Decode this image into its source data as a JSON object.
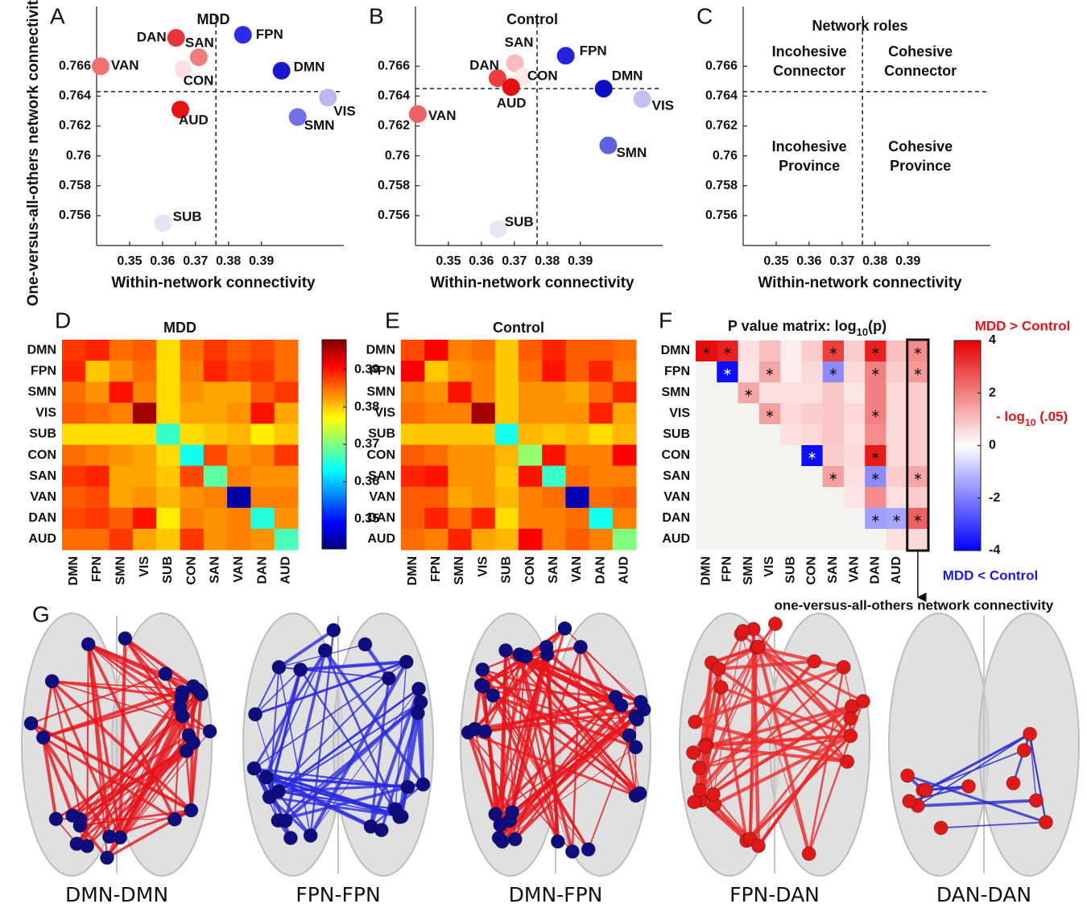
{
  "chart_data": [
    {
      "type": "scatter",
      "panel": "A",
      "title": "MDD",
      "xlabel": "Within-network connectivity",
      "ylabel": "One-versus-all-others network connectivity",
      "xlim": [
        0.34,
        0.415
      ],
      "ylim": [
        0.754,
        0.77
      ],
      "xticks": [
        0.35,
        0.36,
        0.37,
        0.38,
        0.39
      ],
      "yticks": [
        0.756,
        0.758,
        0.76,
        0.762,
        0.764,
        0.766
      ],
      "vline": 0.3762,
      "hline": 0.7643,
      "labels": [
        "DAN",
        "SAN",
        "FPN",
        "VAN",
        "CON",
        "DMN",
        "VIS",
        "AUD",
        "SMN",
        "SUB"
      ],
      "x": [
        0.3641,
        0.371,
        0.3844,
        0.3412,
        0.3663,
        0.3961,
        0.4102,
        0.3654,
        0.401,
        0.3602
      ],
      "y": [
        0.7679,
        0.7666,
        0.7681,
        0.766,
        0.7658,
        0.7657,
        0.7639,
        0.7631,
        0.7626,
        0.7555
      ],
      "colors": [
        "#e8323c",
        "#f07c7c",
        "#2b2be8",
        "#f27070",
        "#fbe0e0",
        "#1818d0",
        "#b9b9f0",
        "#e81010",
        "#7070e8",
        "#e4e4f6"
      ]
    },
    {
      "type": "scatter",
      "panel": "B",
      "title": "Control",
      "xlabel": "Within-network connectivity",
      "xlim": [
        0.34,
        0.415
      ],
      "ylim": [
        0.754,
        0.77
      ],
      "xticks": [
        0.35,
        0.36,
        0.37,
        0.38,
        0.39
      ],
      "yticks": [
        0.756,
        0.758,
        0.76,
        0.762,
        0.764,
        0.766
      ],
      "vline": 0.3769,
      "hline": 0.7645,
      "labels": [
        "SAN",
        "FPN",
        "DAN",
        "CON",
        "AUD",
        "DMN",
        "VIS",
        "VAN",
        "SMN",
        "SUB"
      ],
      "x": [
        0.3702,
        0.3856,
        0.3649,
        0.3727,
        0.369,
        0.3971,
        0.4088,
        0.3407,
        0.3985,
        0.3651
      ],
      "y": [
        0.7662,
        0.7667,
        0.7652,
        0.7653,
        0.7646,
        0.7645,
        0.7638,
        0.7628,
        0.7607,
        0.7551
      ],
      "colors": [
        "#f6bcbc",
        "#2424e0",
        "#ef3c3c",
        "#fde8e8",
        "#e41010",
        "#0c0cc8",
        "#c2c2f0",
        "#f06060",
        "#6060e0",
        "#e6e6f4"
      ]
    },
    {
      "type": "roles",
      "panel": "C",
      "title": "Network roles",
      "xlabel": "Within-network connectivity",
      "xlim": [
        0.34,
        0.415
      ],
      "ylim": [
        0.754,
        0.77
      ],
      "xticks": [
        0.35,
        0.36,
        0.37,
        0.38,
        0.39
      ],
      "yticks": [
        0.756,
        0.758,
        0.76,
        0.762,
        0.764,
        0.766
      ],
      "vline": 0.3762,
      "hline": 0.7643,
      "quadrants": [
        [
          "Incohesive",
          "Connector"
        ],
        [
          "Cohesive",
          "Connector"
        ],
        [
          "Incohesive",
          "Province"
        ],
        [
          "Cohesive",
          "Province"
        ]
      ]
    },
    {
      "type": "heatmap",
      "panel": "D",
      "title": "MDD",
      "colormap": "jet",
      "clim": [
        0.342,
        0.398
      ],
      "colorbar_ticks": [
        0.35,
        0.36,
        0.37,
        0.38,
        0.39
      ],
      "row_categories": [
        "DMN",
        "FPN",
        "SMN",
        "VIS",
        "SUB",
        "CON",
        "SAN",
        "VAN",
        "DAN",
        "AUD"
      ],
      "categories": [
        "DMN",
        "FPN",
        "SMN",
        "VIS",
        "SUB",
        "CON",
        "SAN",
        "VAN",
        "DAN",
        "AUD"
      ],
      "values": [
        [
          0.388,
          0.389,
          0.385,
          0.386,
          0.379,
          0.385,
          0.388,
          0.386,
          0.387,
          0.385
        ],
        [
          0.389,
          0.38,
          0.383,
          0.385,
          0.379,
          0.384,
          0.389,
          0.387,
          0.388,
          0.385
        ],
        [
          0.385,
          0.383,
          0.39,
          0.384,
          0.379,
          0.383,
          0.382,
          0.382,
          0.386,
          0.388
        ],
        [
          0.386,
          0.385,
          0.384,
          0.396,
          0.379,
          0.382,
          0.382,
          0.383,
          0.39,
          0.382
        ],
        [
          0.379,
          0.379,
          0.379,
          0.379,
          0.366,
          0.379,
          0.38,
          0.381,
          0.378,
          0.38
        ],
        [
          0.385,
          0.384,
          0.383,
          0.382,
          0.379,
          0.364,
          0.387,
          0.383,
          0.384,
          0.388
        ],
        [
          0.388,
          0.389,
          0.382,
          0.382,
          0.38,
          0.387,
          0.368,
          0.384,
          0.383,
          0.383
        ],
        [
          0.386,
          0.387,
          0.382,
          0.383,
          0.381,
          0.383,
          0.384,
          0.344,
          0.384,
          0.384
        ],
        [
          0.387,
          0.388,
          0.386,
          0.39,
          0.378,
          0.384,
          0.383,
          0.384,
          0.365,
          0.383
        ],
        [
          0.385,
          0.385,
          0.388,
          0.382,
          0.38,
          0.388,
          0.383,
          0.384,
          0.383,
          0.367
        ]
      ]
    },
    {
      "type": "heatmap",
      "panel": "E",
      "title": "Control",
      "colormap": "jet",
      "clim": [
        0.342,
        0.398
      ],
      "row_categories": [
        "DMN",
        "FPN",
        "SMN",
        "VIS",
        "SUB",
        "CON",
        "SAN",
        "VAN",
        "DAN",
        "AUD"
      ],
      "categories": [
        "DMN",
        "FPN",
        "SMN",
        "VIS",
        "SUB",
        "CON",
        "SAN",
        "VAN",
        "DAN",
        "AUD"
      ],
      "values": [
        [
          0.387,
          0.391,
          0.384,
          0.385,
          0.38,
          0.386,
          0.389,
          0.386,
          0.386,
          0.385
        ],
        [
          0.391,
          0.38,
          0.383,
          0.384,
          0.38,
          0.385,
          0.39,
          0.386,
          0.389,
          0.384
        ],
        [
          0.384,
          0.383,
          0.39,
          0.384,
          0.38,
          0.383,
          0.383,
          0.382,
          0.385,
          0.389
        ],
        [
          0.385,
          0.384,
          0.384,
          0.396,
          0.38,
          0.383,
          0.383,
          0.383,
          0.389,
          0.382
        ],
        [
          0.38,
          0.38,
          0.38,
          0.38,
          0.364,
          0.381,
          0.38,
          0.381,
          0.379,
          0.381
        ],
        [
          0.386,
          0.385,
          0.383,
          0.383,
          0.381,
          0.371,
          0.39,
          0.384,
          0.384,
          0.391
        ],
        [
          0.389,
          0.39,
          0.383,
          0.383,
          0.38,
          0.39,
          0.366,
          0.385,
          0.384,
          0.384
        ],
        [
          0.386,
          0.386,
          0.382,
          0.383,
          0.381,
          0.384,
          0.385,
          0.345,
          0.385,
          0.386
        ],
        [
          0.386,
          0.389,
          0.385,
          0.389,
          0.379,
          0.384,
          0.384,
          0.385,
          0.364,
          0.384
        ],
        [
          0.385,
          0.384,
          0.389,
          0.382,
          0.381,
          0.391,
          0.384,
          0.386,
          0.384,
          0.37
        ]
      ]
    },
    {
      "type": "heatmap",
      "panel": "F",
      "title_parts": [
        "P value matrix: log",
        "10",
        "(p)"
      ],
      "colormap": "bwr",
      "clim": [
        -4,
        4
      ],
      "colorbar_ticks": [
        4,
        2,
        0,
        -2,
        -4
      ],
      "threshold": {
        "value": 1.301,
        "parts": [
          "- log",
          "10",
          " (.05)"
        ],
        "color": "#e8121b"
      },
      "upper_label": {
        "text": "MDD > Control",
        "color": "#e8121b"
      },
      "lower_label": {
        "text": "MDD < Control",
        "color": "#1a1aee"
      },
      "highlight_column": 10,
      "highlight_note": "one-versus-all-others network connectivity",
      "row_categories": [
        "DMN",
        "FPN",
        "SMN",
        "VIS",
        "SUB",
        "CON",
        "SAN",
        "VAN",
        "DAN",
        "AUD"
      ],
      "categories": [
        "DMN",
        "FPN",
        "SMN",
        "VIS",
        "SUB",
        "CON",
        "SAN",
        "VAN",
        "DAN",
        "AUD",
        null
      ],
      "values": [
        [
          3.8,
          3.5,
          0.5,
          1.0,
          0.3,
          0.8,
          3.0,
          0.8,
          3.5,
          1.0,
          1.8
        ],
        [
          null,
          -3.8,
          0.4,
          1.4,
          0.3,
          0.6,
          -1.8,
          0.6,
          2.0,
          0.8,
          1.6
        ],
        [
          null,
          null,
          1.4,
          0.5,
          0.5,
          0.5,
          0.9,
          0.4,
          2.0,
          0.6,
          0.8
        ],
        [
          null,
          null,
          null,
          1.5,
          0.6,
          0.8,
          0.9,
          0.6,
          2.0,
          0.6,
          0.8
        ],
        [
          null,
          null,
          null,
          null,
          0.5,
          0.6,
          0.9,
          0.5,
          1.8,
          0.6,
          0.8
        ],
        [
          null,
          null,
          null,
          null,
          null,
          -3.8,
          0.8,
          0.6,
          3.6,
          0.6,
          0.8
        ],
        [
          null,
          null,
          null,
          null,
          null,
          null,
          1.5,
          0.5,
          -1.8,
          0.8,
          1.4
        ],
        [
          null,
          null,
          null,
          null,
          null,
          null,
          null,
          0.4,
          1.8,
          0.5,
          0.8
        ],
        [
          null,
          null,
          null,
          null,
          null,
          null,
          null,
          null,
          -1.5,
          -1.4,
          2.5
        ],
        [
          null,
          null,
          null,
          null,
          null,
          null,
          null,
          null,
          null,
          0.5,
          0.6
        ]
      ],
      "significant": [
        [
          true,
          true,
          false,
          false,
          false,
          false,
          true,
          false,
          true,
          false,
          true
        ],
        [
          false,
          true,
          false,
          true,
          false,
          false,
          true,
          false,
          true,
          false,
          true
        ],
        [
          false,
          false,
          true,
          false,
          false,
          false,
          false,
          false,
          false,
          false,
          false
        ],
        [
          false,
          false,
          false,
          true,
          false,
          false,
          false,
          false,
          true,
          false,
          false
        ],
        [
          false,
          false,
          false,
          false,
          false,
          false,
          false,
          false,
          false,
          false,
          false
        ],
        [
          false,
          false,
          false,
          false,
          false,
          true,
          false,
          false,
          true,
          false,
          false
        ],
        [
          false,
          false,
          false,
          false,
          false,
          false,
          true,
          false,
          true,
          false,
          true
        ],
        [
          false,
          false,
          false,
          false,
          false,
          false,
          false,
          false,
          false,
          false,
          false
        ],
        [
          false,
          false,
          false,
          false,
          false,
          false,
          false,
          false,
          true,
          true,
          true
        ],
        [
          false,
          false,
          false,
          false,
          false,
          false,
          false,
          false,
          false,
          false,
          false
        ]
      ]
    },
    {
      "type": "network",
      "panel": "G",
      "brains": [
        {
          "label": "DMN-DMN",
          "edge_color": "#e8141c",
          "node_color": "#0d0d80"
        },
        {
          "label": "FPN-FPN",
          "edge_color": "#2a2ae0",
          "node_color": "#0d0d80"
        },
        {
          "label": "DMN-FPN",
          "edge_color": "#e8141c",
          "node_color": "#0d0d80"
        },
        {
          "label": "FPN-DAN",
          "edge_color": "#ee2a2a",
          "node_color": "#e01818"
        },
        {
          "label": "DAN-DAN",
          "edge_color": "#2a2ad0",
          "node_color": "#e01818"
        }
      ]
    }
  ]
}
